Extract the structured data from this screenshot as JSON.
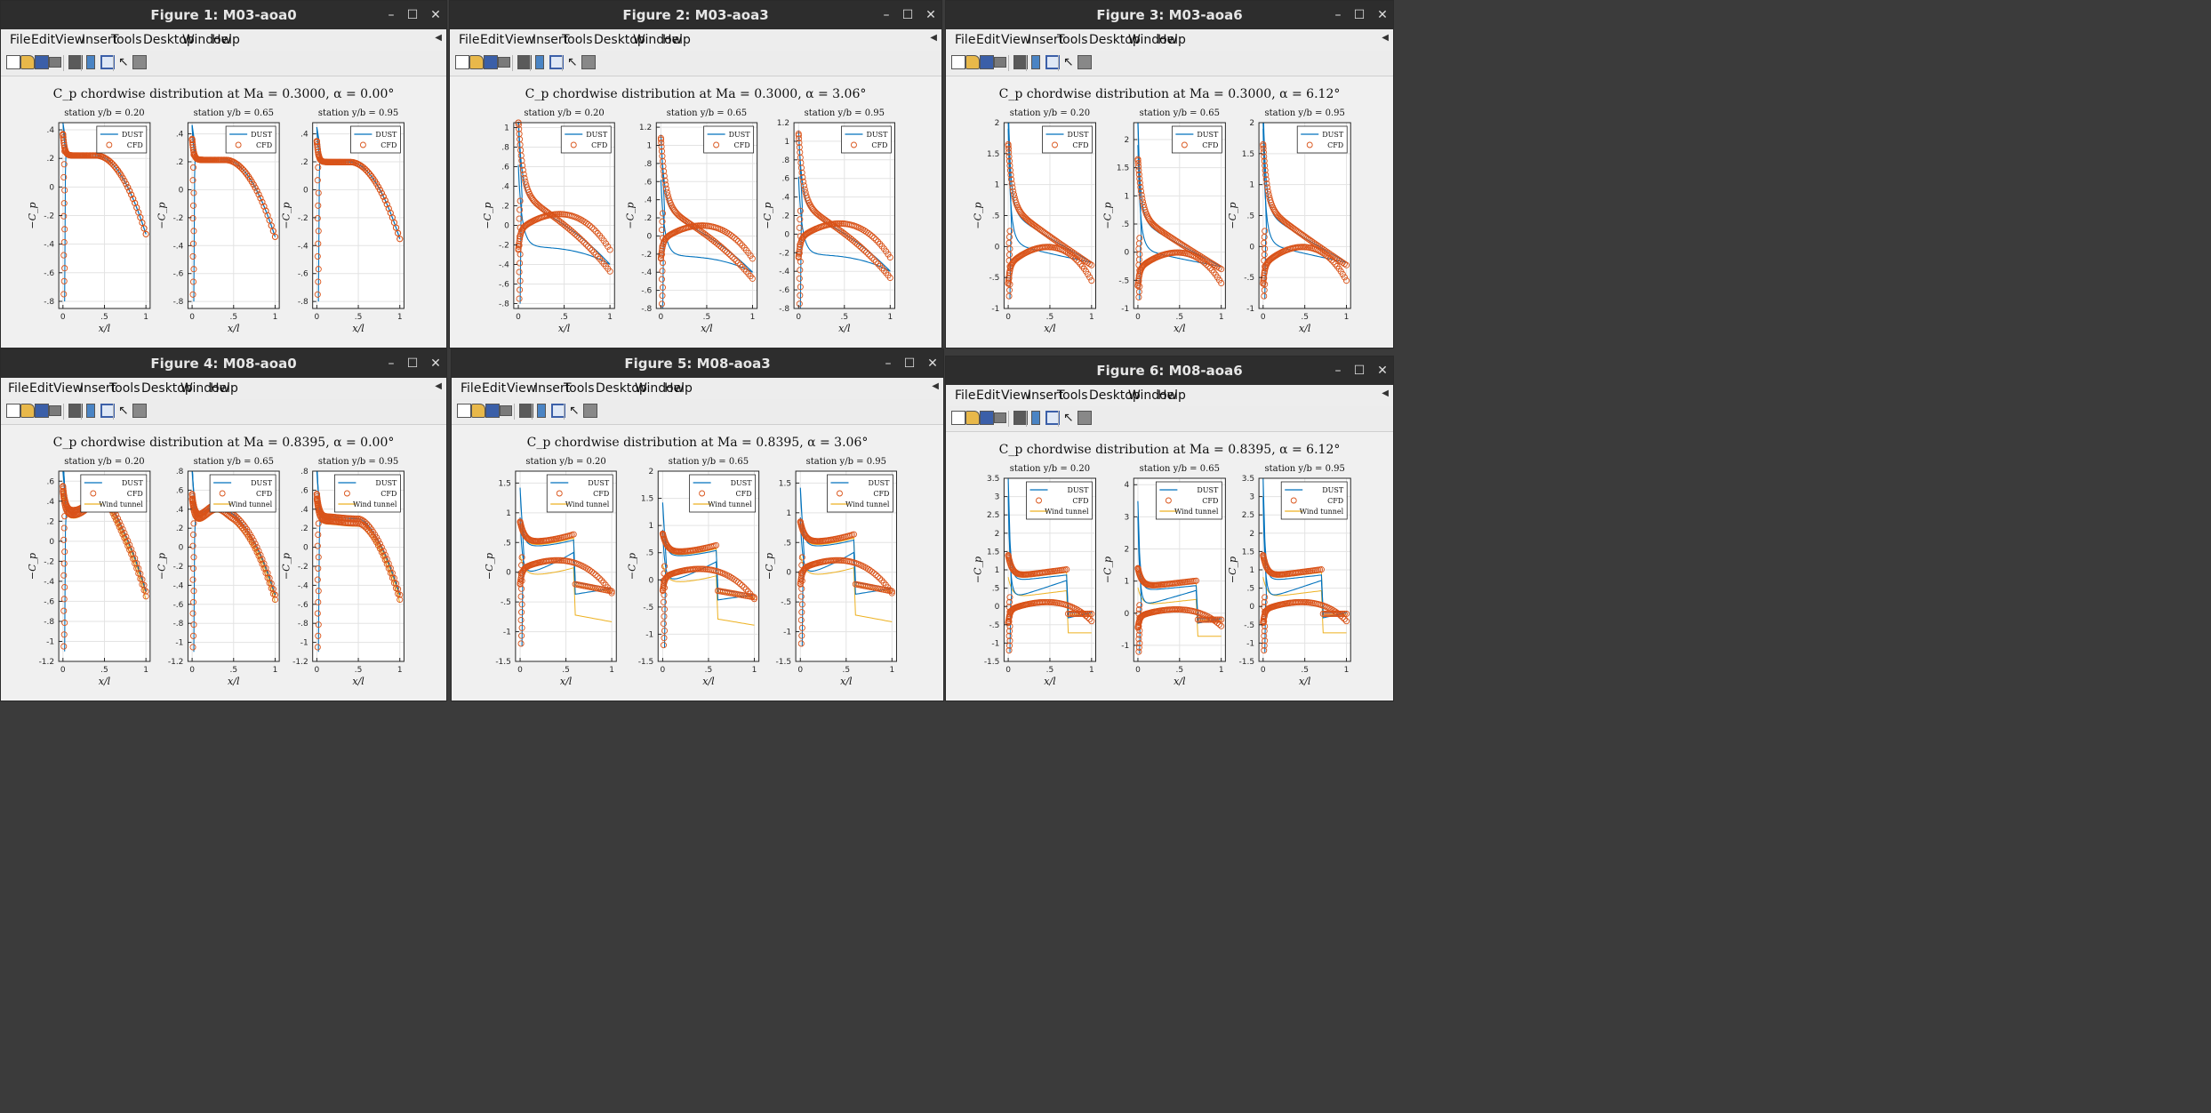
{
  "figures": [
    {
      "window_title": "Figure 1: M03-aoa0",
      "plot_title": "C_p chordwise distribution at Ma = 0.3000, α = 0.00°",
      "regime": "M03",
      "aoa": 0
    },
    {
      "window_title": "Figure 2: M03-aoa3",
      "plot_title": "C_p chordwise distribution at Ma = 0.3000, α = 3.06°",
      "regime": "M03",
      "aoa": 3
    },
    {
      "window_title": "Figure 3: M03-aoa6",
      "plot_title": "C_p chordwise distribution at Ma = 0.3000, α = 6.12°",
      "regime": "M03",
      "aoa": 6
    },
    {
      "window_title": "Figure 4: M08-aoa0",
      "plot_title": "C_p chordwise distribution at Ma = 0.8395, α = 0.00°",
      "regime": "M08",
      "aoa": 0
    },
    {
      "window_title": "Figure 5: M08-aoa3",
      "plot_title": "C_p chordwise distribution at Ma = 0.8395, α = 3.06°",
      "regime": "M08",
      "aoa": 3
    },
    {
      "window_title": "Figure 6: M08-aoa6",
      "plot_title": "C_p chordwise distribution at Ma = 0.8395, α = 6.12°",
      "regime": "M08",
      "aoa": 6
    }
  ],
  "menu_items": [
    "File",
    "Edit",
    "View",
    "Insert",
    "Tools",
    "Desktop",
    "Window",
    "Help"
  ],
  "window_buttons": {
    "minimize": "–",
    "maximize": "☐",
    "close": "✕"
  },
  "toolbar_icons": [
    "new-figure-icon",
    "open-file-icon",
    "save-icon",
    "print-icon",
    "print-preview-icon",
    "colorbar-icon",
    "legend-icon",
    "pointer-icon",
    "property-editor-icon"
  ],
  "stations": [
    "station y/b = 0.20",
    "station y/b = 0.65",
    "station y/b = 0.95"
  ],
  "axis_labels": {
    "x": "x/l",
    "y": "−C_p"
  },
  "legend": {
    "dust": "DUST",
    "cfd": "CFD",
    "wind_tunnel": "Wind tunnel"
  },
  "colors": {
    "dust": "#0072bd",
    "cfd": "#d95319",
    "wind_tunnel": "#edb120",
    "titlebar": "#2d2d2d",
    "figure_bg": "#f0f0f0"
  },
  "chart_data": [
    {
      "type": "line",
      "figure": 1,
      "xlabel": "x/l",
      "ylabel": "−C_p",
      "series_names": [
        "DUST",
        "CFD"
      ],
      "subplots": [
        {
          "title": "station y/b = 0.20",
          "ylim": [
            -0.85,
            0.45
          ],
          "yticks": [
            -0.8,
            -0.6,
            -0.4,
            -0.2,
            0,
            0.2,
            0.4
          ]
        },
        {
          "title": "station y/b = 0.65",
          "ylim": [
            -0.85,
            0.48
          ],
          "yticks": [
            -0.8,
            -0.6,
            -0.4,
            -0.2,
            0,
            0.2,
            0.4
          ]
        },
        {
          "title": "station y/b = 0.95",
          "ylim": [
            -0.85,
            0.48
          ],
          "yticks": [
            -0.8,
            -0.6,
            -0.4,
            -0.2,
            0,
            0.2,
            0.4
          ]
        }
      ]
    },
    {
      "type": "line",
      "figure": 2,
      "xlabel": "x/l",
      "ylabel": "−C_p",
      "series_names": [
        "DUST",
        "CFD"
      ],
      "subplots": [
        {
          "title": "station y/b = 0.20",
          "ylim": [
            -0.85,
            1.05
          ],
          "yticks": [
            -0.8,
            -0.6,
            -0.4,
            -0.2,
            0,
            0.2,
            0.4,
            0.6,
            0.8,
            1
          ]
        },
        {
          "title": "station y/b = 0.65",
          "ylim": [
            -0.8,
            1.25
          ],
          "yticks": [
            -0.8,
            -0.6,
            -0.4,
            -0.2,
            0,
            0.2,
            0.4,
            0.6,
            0.8,
            1,
            1.2
          ]
        },
        {
          "title": "station y/b = 0.95",
          "ylim": [
            -0.8,
            1.2
          ],
          "yticks": [
            -0.8,
            -0.6,
            -0.4,
            -0.2,
            0,
            0.2,
            0.4,
            0.6,
            0.8,
            1,
            1.2
          ]
        }
      ]
    },
    {
      "type": "line",
      "figure": 3,
      "xlabel": "x/l",
      "ylabel": "−C_p",
      "series_names": [
        "DUST",
        "CFD"
      ],
      "subplots": [
        {
          "title": "station y/b = 0.20",
          "ylim": [
            -1,
            2
          ],
          "yticks": [
            -1,
            -0.5,
            0,
            0.5,
            1,
            1.5,
            2
          ]
        },
        {
          "title": "station y/b = 0.65",
          "ylim": [
            -1,
            2.3
          ],
          "yticks": [
            -1,
            -0.5,
            0,
            0.5,
            1,
            1.5,
            2
          ]
        },
        {
          "title": "station y/b = 0.95",
          "ylim": [
            -1,
            2
          ],
          "yticks": [
            -1,
            -0.5,
            0,
            0.5,
            1,
            1.5,
            2
          ]
        }
      ]
    },
    {
      "type": "line",
      "figure": 4,
      "xlabel": "x/l",
      "ylabel": "−C_p",
      "series_names": [
        "DUST",
        "CFD",
        "Wind tunnel"
      ],
      "subplots": [
        {
          "title": "station y/b = 0.20",
          "ylim": [
            -1.2,
            0.7
          ],
          "yticks": [
            -1.2,
            -1,
            -0.8,
            -0.6,
            -0.4,
            -0.2,
            0,
            0.2,
            0.4,
            0.6
          ]
        },
        {
          "title": "station y/b = 0.65",
          "ylim": [
            -1.2,
            0.8
          ],
          "yticks": [
            -1.2,
            -1,
            -0.8,
            -0.6,
            -0.4,
            -0.2,
            0,
            0.2,
            0.4,
            0.6,
            0.8
          ]
        },
        {
          "title": "station y/b = 0.95",
          "ylim": [
            -1.2,
            0.8
          ],
          "yticks": [
            -1.2,
            -1,
            -0.8,
            -0.6,
            -0.4,
            -0.2,
            0,
            0.2,
            0.4,
            0.6,
            0.8
          ]
        }
      ]
    },
    {
      "type": "line",
      "figure": 5,
      "xlabel": "x/l",
      "ylabel": "−C_p",
      "series_names": [
        "DUST",
        "CFD",
        "Wind tunnel"
      ],
      "subplots": [
        {
          "title": "station y/b = 0.20",
          "ylim": [
            -1.5,
            1.7
          ],
          "yticks": [
            -1.5,
            -1,
            -0.5,
            0,
            0.5,
            1,
            1.5
          ]
        },
        {
          "title": "station y/b = 0.65",
          "ylim": [
            -1.5,
            2
          ],
          "yticks": [
            -1.5,
            -1,
            -0.5,
            0,
            0.5,
            1,
            1.5,
            2
          ]
        },
        {
          "title": "station y/b = 0.95",
          "ylim": [
            -1.5,
            1.7
          ],
          "yticks": [
            -1.5,
            -1,
            -0.5,
            0,
            0.5,
            1,
            1.5
          ]
        }
      ]
    },
    {
      "type": "line",
      "figure": 6,
      "xlabel": "x/l",
      "ylabel": "−C_p",
      "series_names": [
        "DUST",
        "CFD",
        "Wind tunnel"
      ],
      "subplots": [
        {
          "title": "station y/b = 0.20",
          "ylim": [
            -1.5,
            3.5
          ],
          "yticks": [
            -1.5,
            -1,
            -0.5,
            0,
            0.5,
            1,
            1.5,
            2,
            2.5,
            3,
            3.5
          ]
        },
        {
          "title": "station y/b = 0.65",
          "ylim": [
            -1.5,
            4.2
          ],
          "yticks": [
            -1,
            0,
            1,
            2,
            3,
            4
          ]
        },
        {
          "title": "station y/b = 0.95",
          "ylim": [
            -1.5,
            3.5
          ],
          "yticks": [
            -1.5,
            -1,
            -0.5,
            0,
            0.5,
            1,
            1.5,
            2,
            2.5,
            3,
            3.5
          ]
        }
      ]
    }
  ]
}
